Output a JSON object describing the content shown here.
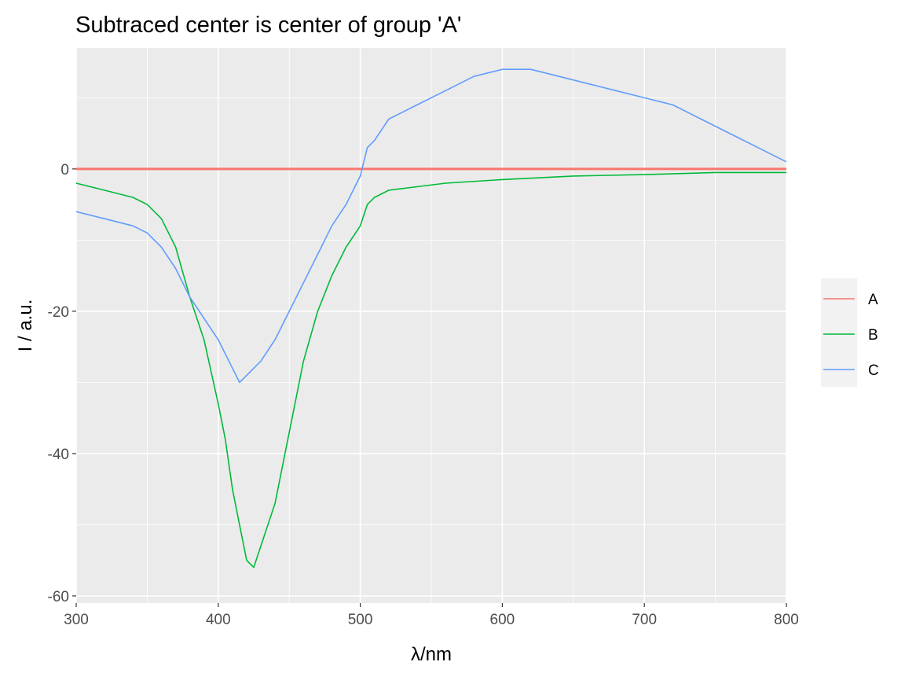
{
  "chart_data": {
    "type": "line",
    "title": "Subtraced center is center of group 'A'",
    "xlabel": "λ/nm",
    "ylabel": "I / a.u.",
    "xlim": [
      300,
      800
    ],
    "ylim": [
      -61,
      17
    ],
    "x_ticks": [
      300,
      400,
      500,
      600,
      700,
      800
    ],
    "x_tick_labels": [
      "300",
      "400",
      "500",
      "600",
      "700",
      "800"
    ],
    "y_ticks": [
      0,
      -20,
      -40,
      -60
    ],
    "y_tick_labels": [
      "0",
      "-20",
      "-40",
      "-60"
    ],
    "grid": true,
    "legend": {
      "position": "right",
      "entries": [
        "A",
        "B",
        "C"
      ]
    },
    "colors": {
      "A": "#F8766D",
      "B": "#00BA38",
      "C": "#619CFF",
      "panel": "#EBEBEB",
      "grid": "#FFFFFF"
    },
    "series": [
      {
        "name": "A",
        "color": "#F8766D",
        "x": [
          300,
          800
        ],
        "y": [
          0,
          0
        ]
      },
      {
        "name": "B",
        "color": "#00BA38",
        "x": [
          300,
          320,
          340,
          350,
          360,
          370,
          380,
          390,
          400,
          405,
          410,
          415,
          420,
          425,
          430,
          440,
          450,
          460,
          470,
          480,
          490,
          500,
          505,
          510,
          520,
          540,
          560,
          600,
          650,
          700,
          750,
          800
        ],
        "y": [
          -2,
          -3,
          -4,
          -5,
          -7,
          -11,
          -18,
          -24,
          -33,
          -38,
          -45,
          -50,
          -55,
          -56,
          -53,
          -47,
          -37,
          -27,
          -20,
          -15,
          -11,
          -8,
          -5,
          -4,
          -3,
          -2.5,
          -2,
          -1.5,
          -1,
          -0.8,
          -0.5,
          -0.5
        ]
      },
      {
        "name": "C",
        "color": "#619CFF",
        "x": [
          300,
          320,
          340,
          350,
          360,
          370,
          380,
          390,
          400,
          410,
          415,
          420,
          430,
          440,
          450,
          460,
          470,
          480,
          490,
          500,
          505,
          510,
          520,
          540,
          560,
          580,
          600,
          620,
          640,
          660,
          680,
          700,
          720,
          740,
          760,
          780,
          790,
          800
        ],
        "y": [
          -6,
          -7,
          -8,
          -9,
          -11,
          -14,
          -18,
          -21,
          -24,
          -28,
          -30,
          -29,
          -27,
          -24,
          -20,
          -16,
          -12,
          -8,
          -5,
          -1,
          3,
          4,
          7,
          9,
          11,
          13,
          14,
          14,
          13,
          12,
          11,
          10,
          9,
          7,
          5,
          3,
          2,
          1
        ]
      }
    ]
  }
}
